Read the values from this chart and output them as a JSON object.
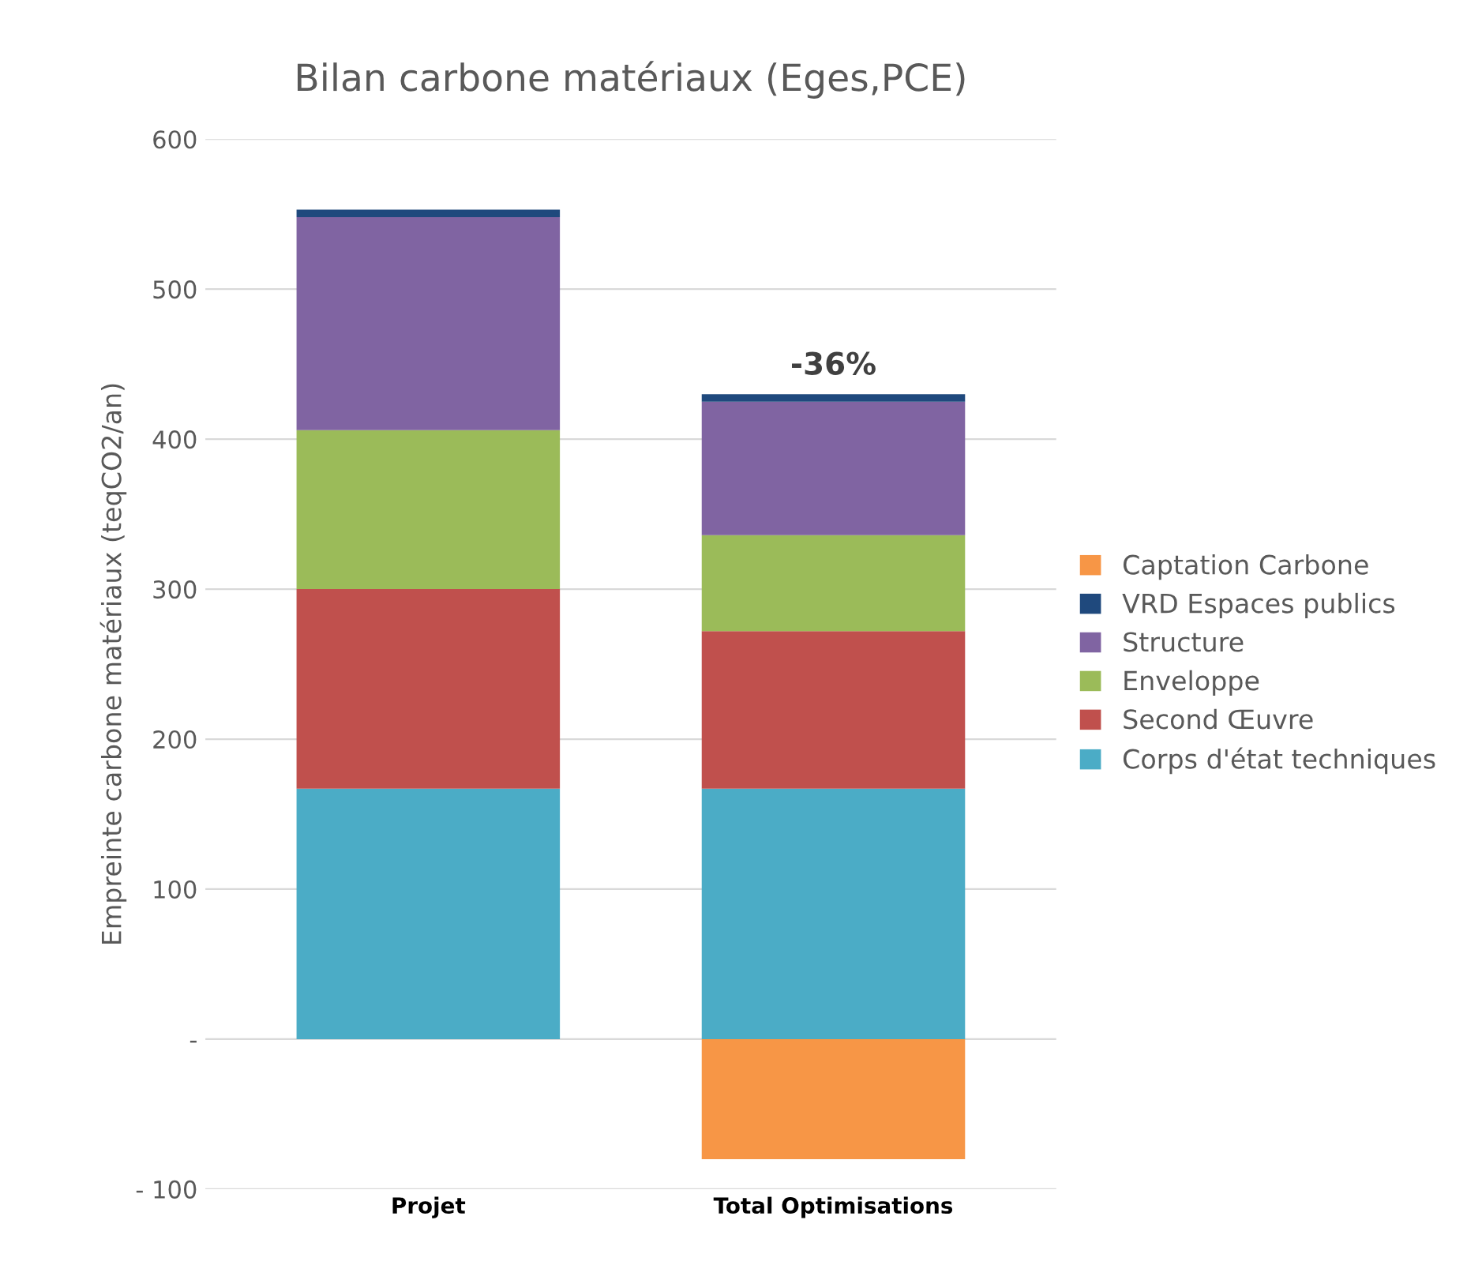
{
  "chart_data": {
    "type": "bar",
    "title": "Bilan carbone matériaux (Eges,PCE)",
    "ylabel": "Empreinte carbone matériaux (teqCO2/an)",
    "categories": [
      "Projet",
      "Total Optimisations"
    ],
    "stacked": true,
    "series": [
      {
        "name": "Corps d'état techniques",
        "color": "#4bacc6",
        "values": [
          167,
          167
        ]
      },
      {
        "name": "Second Œuvre",
        "color": "#c0504d",
        "values": [
          133,
          105
        ]
      },
      {
        "name": "Enveloppe",
        "color": "#9bbb59",
        "values": [
          106,
          64
        ]
      },
      {
        "name": "Structure",
        "color": "#8064a2",
        "values": [
          142,
          89
        ]
      },
      {
        "name": "VRD Espaces publics",
        "color": "#1f497d",
        "values": [
          5,
          5
        ]
      },
      {
        "name": "Captation Carbone",
        "color": "#f79646",
        "values": [
          null,
          -80
        ]
      }
    ],
    "ylim": [
      -100,
      600
    ],
    "yticks": [
      {
        "value": -100,
        "label": "- 100"
      },
      {
        "value": 0,
        "label": "-"
      },
      100,
      200,
      300,
      400,
      500,
      600
    ],
    "grid": "y",
    "legend": "right",
    "annotations": [
      {
        "text": "-36%",
        "x": "Total Optimisations",
        "y": 430
      }
    ]
  }
}
